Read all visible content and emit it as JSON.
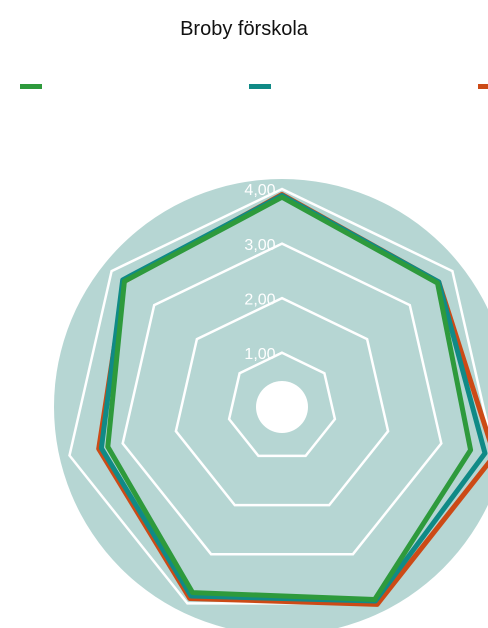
{
  "chart_data": {
    "type": "radar",
    "title": "Broby förskola",
    "rlim": [
      0.5,
      4.0
    ],
    "r_ticks": [
      "1,00",
      "2,00",
      "3,00",
      "4,00"
    ],
    "grid": true,
    "legend_position": "top",
    "series": [
      {
        "color": "#2e9a3c",
        "values": [
          3.85,
          3.65,
          3.55,
          3.92,
          3.78,
          3.28,
          3.7
        ]
      },
      {
        "color": "#108a86",
        "values": [
          3.88,
          3.68,
          3.82,
          3.95,
          3.85,
          3.4,
          3.74
        ]
      },
      {
        "color": "#cc4a16",
        "values": [
          3.9,
          3.68,
          4.0,
          4.02,
          3.9,
          3.45,
          3.7
        ]
      }
    ]
  },
  "colors": {
    "background_disc": "#b6d6d3",
    "gridline": "#ffffff"
  }
}
